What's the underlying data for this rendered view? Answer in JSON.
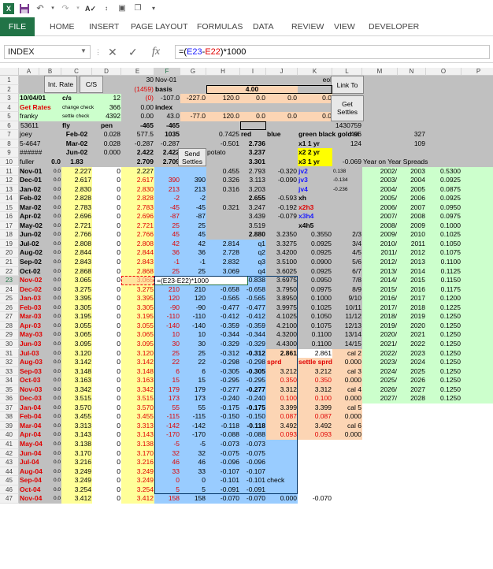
{
  "qat": {
    "app_icon": "X",
    "save_icon": "save-icon",
    "undo_icon": "undo-icon",
    "redo_icon": "redo-icon",
    "spell_icon": "spell-check-icon",
    "sort_icon": "sort-icon"
  },
  "ribbon": {
    "file": "FILE",
    "tabs": [
      "HOME",
      "INSERT",
      "PAGE LAYOUT",
      "FORMULAS",
      "DATA",
      "REVIEW",
      "VIEW",
      "DEVELOPER"
    ]
  },
  "formula_bar": {
    "name_box": "INDEX",
    "formula": "=(E23-E22)*1000",
    "formula_parts": [
      "=(",
      "E23",
      "-",
      "E22",
      ")*1000"
    ],
    "cancel": "✕",
    "enter": "✓",
    "fx": "fx"
  },
  "columns": [
    "A",
    "B",
    "C",
    "D",
    "E",
    "F",
    "G",
    "H",
    "I",
    "J",
    "K",
    "L",
    "M",
    "N",
    "O",
    "P"
  ],
  "rows": [
    "1",
    "2",
    "3",
    "4",
    "5",
    "6",
    "7",
    "8",
    "9",
    "10",
    "11",
    "12",
    "13",
    "14",
    "15",
    "16",
    "17",
    "18",
    "19",
    "20",
    "21",
    "22",
    "23",
    "24",
    "25",
    "26",
    "27",
    "28",
    "29",
    "30",
    "31",
    "32",
    "33",
    "34",
    "35",
    "36",
    "37",
    "38",
    "39",
    "40",
    "41",
    "42",
    "43",
    "44",
    "45",
    "46",
    "47"
  ],
  "buttons": {
    "int_rate": "Int. Rate",
    "cs": "C/S",
    "link_to": "Link To",
    "get_settles": "Get Settles",
    "send_settles": "Send Settles"
  },
  "colors": {
    "ribbon_green": "#217346",
    "yellow": "#ffff99",
    "blue": "#99ccff",
    "peach": "#fcd5b4",
    "light_green": "#ccffcc",
    "gray": "#c0c0c0",
    "red": "#e00000"
  },
  "edit_cell": "=(E23-E22)*1000",
  "top_cells": {
    "E1": "30",
    "F1": "Nov-01",
    "K1": "eol",
    "E2": "(1459)",
    "F2": "basis",
    "H2": "4.00",
    "A3": "10/04/01",
    "C3": "c/s",
    "D3": "12",
    "E3": "(0)",
    "F3": "-107.0",
    "G3": "-227.0",
    "H3": "120.0",
    "I3": "0.0",
    "J3": "0.0",
    "K3": "0.0",
    "A4": "Get Rates",
    "C4": "change check",
    "D4": "366",
    "E4": "0.00",
    "F4": "index",
    "A5": "franky",
    "C5": "settle check",
    "D5": "4392",
    "E5": "0.00",
    "F5": "43.0",
    "G5": "-77.0",
    "H5": "120.0",
    "I5": "0.0",
    "J5": "0.0",
    "K5": "0.0",
    "A6": "53611",
    "C6": "fly",
    "D6": "pen",
    "E6": "-465",
    "F6": "-465",
    "L6": "1430759",
    "A7": "joey",
    "C7": "Feb-02",
    "D7": "0.028",
    "E7": "577.5",
    "F7": "1035",
    "H7": "0.7425",
    "I7": "red",
    "J7": "blue",
    "K7": "green black gold si",
    "L7": "496",
    "N7": "327",
    "A8": "5-4647",
    "C8": "Mar-02",
    "D8": "0.028",
    "E8": "-0.287",
    "F8": "-0.287",
    "H8": "-0.501",
    "I8": "2.736",
    "K8": "x1  1 yr",
    "L8": "124",
    "N8": "109",
    "A9": "######",
    "C9": "Jun-02",
    "D9": "0.000",
    "E9": "2.422",
    "F9": "2.422",
    "H9": "potato",
    "I9": "3.237",
    "K9": "x2  2 yr",
    "A10": "fuller",
    "B10": "0.0",
    "C10": "1.83",
    "E10": "2.709",
    "F10": "2.709",
    "I10": "3.301",
    "K10": "x3  1 yr",
    "L10": "-0.069",
    "M10": "Year on Year Spreads"
  },
  "rows_main": [
    [
      "11",
      "Nov-01",
      "0.0",
      "2.227",
      "0",
      "2.227",
      "",
      "",
      "0.455",
      "2.793",
      "-0.320",
      "jv2",
      "0.138",
      "2002/",
      "2003",
      "0.5300"
    ],
    [
      "12",
      "Dec-01",
      "0.0",
      "2.617",
      "0",
      "2.617",
      "390",
      "390",
      "0.326",
      "3.113",
      "-0.090",
      "jv3",
      "-0.134",
      "2003/",
      "2004",
      "0.0925"
    ],
    [
      "13",
      "Jan-02",
      "0.0",
      "2.830",
      "0",
      "2.830",
      "213",
      "213",
      "0.316",
      "3.203",
      "",
      "jv4",
      "-0.236",
      "2004/",
      "2005",
      "0.0875"
    ],
    [
      "14",
      "Feb-02",
      "0.0",
      "2.828",
      "0",
      "2.828",
      "-2",
      "-2",
      "",
      "2.655",
      "-0.593",
      "xh",
      "",
      "2005/",
      "2006",
      "0.0925"
    ],
    [
      "15",
      "Mar-02",
      "0.0",
      "2.783",
      "0",
      "2.783",
      "-45",
      "-45",
      "0.321",
      "3.247",
      "-0.192",
      "x2h3",
      "",
      "2006/",
      "2007",
      "0.0950"
    ],
    [
      "16",
      "Apr-02",
      "0.0",
      "2.696",
      "0",
      "2.696",
      "-87",
      "-87",
      "",
      "3.439",
      "-0.079",
      "x3h4",
      "",
      "2007/",
      "2008",
      "0.0975"
    ],
    [
      "17",
      "May-02",
      "0.0",
      "2.721",
      "0",
      "2.721",
      "25",
      "25",
      "",
      "3.519",
      "",
      "x4h5",
      "",
      "2008/",
      "2009",
      "0.1000"
    ],
    [
      "18",
      "Jun-02",
      "0.0",
      "2.766",
      "0",
      "2.766",
      "45",
      "45",
      "",
      "2.880",
      "3.2350",
      "0.3550",
      "2/3",
      "2009/",
      "2010",
      "0.1025"
    ],
    [
      "19",
      "Jul-02",
      "0.0",
      "2.808",
      "0",
      "2.808",
      "42",
      "42",
      "2.814",
      "q1",
      "3.3275",
      "0.0925",
      "3/4",
      "2010/",
      "2011",
      "0.1050"
    ],
    [
      "20",
      "Aug-02",
      "0.0",
      "2.844",
      "0",
      "2.844",
      "36",
      "36",
      "2.728",
      "q2",
      "3.4200",
      "0.0925",
      "4/5",
      "2011/",
      "2012",
      "0.1075"
    ],
    [
      "21",
      "Sep-02",
      "0.0",
      "2.843",
      "0",
      "2.843",
      "-1",
      "-1",
      "2.832",
      "q3",
      "3.5100",
      "0.0900",
      "5/6",
      "2012/",
      "2013",
      "0.1100"
    ],
    [
      "22",
      "Oct-02",
      "0.0",
      "2.868",
      "0",
      "2.868",
      "25",
      "25",
      "3.069",
      "q4",
      "3.6025",
      "0.0925",
      "6/7",
      "2013/",
      "2014",
      "0.1125"
    ],
    [
      "23",
      "Nov-02",
      "0.0",
      "3.065",
      "0",
      "3.065",
      "",
      "",
      "",
      "-0.838",
      "3.6975",
      "0.0950",
      "7/8",
      "2014/",
      "2015",
      "0.1150"
    ],
    [
      "24",
      "Dec-02",
      "0.0",
      "3.275",
      "0",
      "3.275",
      "210",
      "210",
      "-0.658",
      "-0.658",
      "3.7950",
      "0.0975",
      "8/9",
      "2015/",
      "2016",
      "0.1175"
    ],
    [
      "25",
      "Jan-03",
      "0.0",
      "3.395",
      "0",
      "3.395",
      "120",
      "120",
      "-0.565",
      "-0.565",
      "3.8950",
      "0.1000",
      "9/10",
      "2016/",
      "2017",
      "0.1200"
    ],
    [
      "26",
      "Feb-03",
      "0.0",
      "3.305",
      "0",
      "3.305",
      "-90",
      "-90",
      "-0.477",
      "-0.477",
      "3.9975",
      "0.1025",
      "10/11",
      "2017/",
      "2018",
      "0.1225"
    ],
    [
      "27",
      "Mar-03",
      "0.0",
      "3.195",
      "0",
      "3.195",
      "-110",
      "-110",
      "-0.412",
      "-0.412",
      "4.1025",
      "0.1050",
      "11/12",
      "2018/",
      "2019",
      "0.1250"
    ],
    [
      "28",
      "Apr-03",
      "0.0",
      "3.055",
      "0",
      "3.055",
      "-140",
      "-140",
      "-0.359",
      "-0.359",
      "4.2100",
      "0.1075",
      "12/13",
      "2019/",
      "2020",
      "0.1250"
    ],
    [
      "29",
      "May-03",
      "0.0",
      "3.065",
      "0",
      "3.065",
      "10",
      "10",
      "-0.344",
      "-0.344",
      "4.3200",
      "0.1100",
      "13/14",
      "2020/",
      "2021",
      "0.1250"
    ],
    [
      "30",
      "Jun-03",
      "0.0",
      "3.095",
      "0",
      "3.095",
      "30",
      "30",
      "-0.329",
      "-0.329",
      "4.4300",
      "0.1100",
      "14/15",
      "2021/",
      "2022",
      "0.1250"
    ],
    [
      "31",
      "Jul-03",
      "0.0",
      "3.120",
      "0",
      "3.120",
      "25",
      "25",
      "-0.312",
      "-0.312",
      "2.861",
      "2.861",
      "cal 2",
      "2022/",
      "2023",
      "0.1250"
    ],
    [
      "32",
      "Aug-03",
      "0.0",
      "3.142",
      "0",
      "3.142",
      "22",
      "22",
      "-0.298",
      "-0.298",
      "sprd",
      "settle sprd",
      "0.000",
      "2023/",
      "2024",
      "0.1250"
    ],
    [
      "33",
      "Sep-03",
      "0.0",
      "3.148",
      "0",
      "3.148",
      "6",
      "6",
      "-0.305",
      "-0.305",
      "3.212",
      "3.212",
      "cal 3",
      "2024/",
      "2025",
      "0.1250"
    ],
    [
      "34",
      "Oct-03",
      "0.0",
      "3.163",
      "0",
      "3.163",
      "15",
      "15",
      "-0.295",
      "-0.295",
      "0.350",
      "0.350",
      "0.000",
      "2025/",
      "2026",
      "0.1250"
    ],
    [
      "35",
      "Nov-03",
      "0.0",
      "3.342",
      "0",
      "3.342",
      "179",
      "179",
      "-0.277",
      "-0.277",
      "3.312",
      "3.312",
      "cal 4",
      "2026/",
      "2027",
      "0.1250"
    ],
    [
      "36",
      "Dec-03",
      "0.0",
      "3.515",
      "0",
      "3.515",
      "173",
      "173",
      "-0.240",
      "-0.240",
      "0.100",
      "0.100",
      "0.000",
      "2027/",
      "2028",
      "0.1250"
    ],
    [
      "37",
      "Jan-04",
      "0.0",
      "3.570",
      "0",
      "3.570",
      "55",
      "55",
      "-0.175",
      "-0.175",
      "3.399",
      "3.399",
      "cal 5",
      "",
      "",
      ""
    ],
    [
      "38",
      "Feb-04",
      "0.0",
      "3.455",
      "0",
      "3.455",
      "-115",
      "-115",
      "-0.150",
      "-0.150",
      "0.087",
      "0.087",
      "0.000",
      "",
      "",
      ""
    ],
    [
      "39",
      "Mar-04",
      "0.0",
      "3.313",
      "0",
      "3.313",
      "-142",
      "-142",
      "-0.118",
      "-0.118",
      "3.492",
      "3.492",
      "cal 6",
      "",
      "",
      ""
    ],
    [
      "40",
      "Apr-04",
      "0.0",
      "3.143",
      "0",
      "3.143",
      "-170",
      "-170",
      "-0.088",
      "-0.088",
      "0.093",
      "0.093",
      "0.000",
      "",
      "",
      ""
    ],
    [
      "41",
      "May-04",
      "0.0",
      "3.138",
      "0",
      "3.138",
      "-5",
      "-5",
      "-0.073",
      "-0.073",
      "",
      "",
      "",
      "",
      "",
      ""
    ],
    [
      "42",
      "Jun-04",
      "0.0",
      "3.170",
      "0",
      "3.170",
      "32",
      "32",
      "-0.075",
      "-0.075",
      "",
      "",
      "",
      "",
      "",
      ""
    ],
    [
      "43",
      "Jul-04",
      "0.0",
      "3.216",
      "0",
      "3.216",
      "46",
      "46",
      "-0.096",
      "-0.096",
      "",
      "",
      "",
      "",
      "",
      ""
    ],
    [
      "44",
      "Aug-04",
      "0.0",
      "3.249",
      "0",
      "3.249",
      "33",
      "33",
      "-0.107",
      "-0.107",
      "",
      "",
      "",
      "",
      "",
      ""
    ],
    [
      "45",
      "Sep-04",
      "0.0",
      "3.249",
      "0",
      "3.249",
      "0",
      "0",
      "-0.101",
      "-0.101",
      "check",
      "",
      "",
      "",
      "",
      ""
    ],
    [
      "46",
      "Oct-04",
      "0.0",
      "3.254",
      "0",
      "3.254",
      "5",
      "5",
      "-0.091",
      "-0.091",
      "",
      "",
      "",
      "",
      "",
      ""
    ],
    [
      "47",
      "Nov-04",
      "0.0",
      "3.412",
      "0",
      "3.412",
      "158",
      "158",
      "-0.070",
      "-0.070",
      "0.000",
      "-0.070",
      "",
      "",
      "",
      ""
    ]
  ]
}
